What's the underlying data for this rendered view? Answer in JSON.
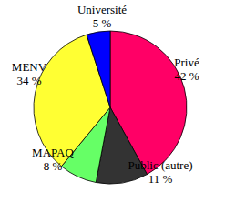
{
  "chart_data": {
    "type": "pie",
    "categories": [
      "Privé",
      "Public (autre)",
      "MAPAQ",
      "MENV",
      "Université"
    ],
    "values": [
      42,
      11,
      8,
      34,
      5
    ],
    "value_labels": [
      "42 %",
      "11 %",
      "8 %",
      "34 %",
      "5 %"
    ],
    "colors": [
      "#ff0066",
      "#333333",
      "#66ff66",
      "#ffff33",
      "#0000ff"
    ],
    "data_labels": true
  }
}
